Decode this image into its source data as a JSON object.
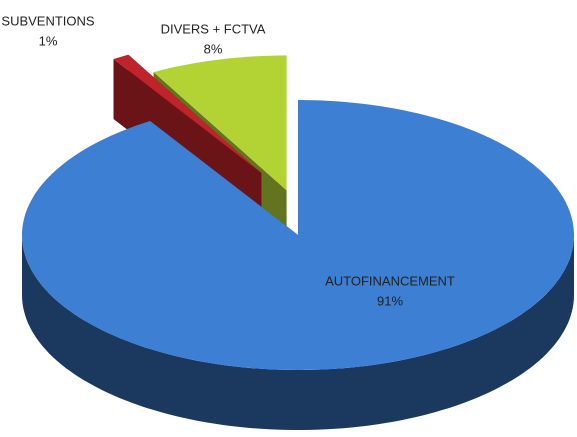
{
  "chart_data": {
    "type": "pie3d",
    "categories": [
      "AUTOFINANCEMENT",
      "SUBVENTIONS",
      "DIVERS + FCTVA"
    ],
    "values": [
      91,
      1,
      8
    ],
    "value_labels": [
      "91%",
      "1%",
      "8%"
    ],
    "colors": [
      "#3d7fd3",
      "#c0242a",
      "#b3d334"
    ]
  }
}
